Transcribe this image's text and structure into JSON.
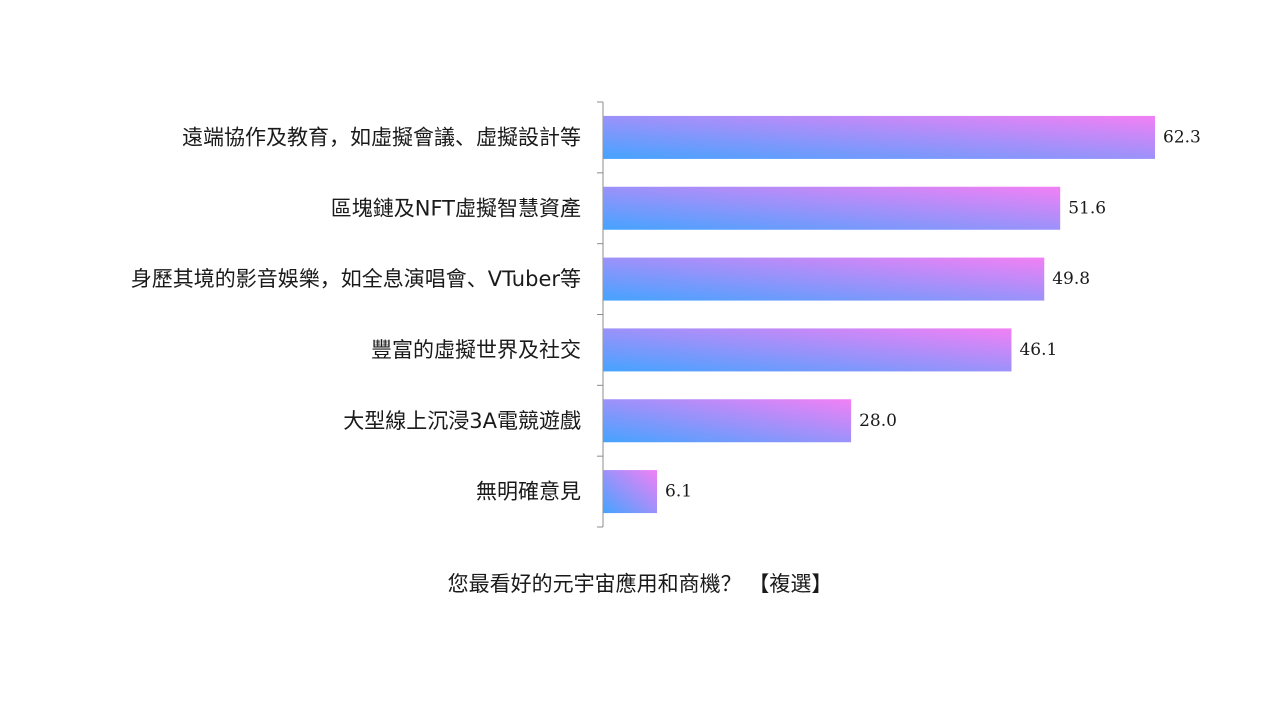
{
  "chart_data": {
    "type": "bar",
    "orientation": "horizontal",
    "title": "您最看好的元宇宙應用和商機？ 【複選】",
    "categories": [
      "遠端協作及教育，如虛擬會議、虛擬設計等",
      "區塊鏈及NFT虛擬智慧資產",
      "身歷其境的影音娛樂，如全息演唱會、VTuber等",
      "豐富的虛擬世界及社交",
      "大型線上沉浸3A電競遊戲",
      "無明確意見"
    ],
    "values": [
      62.3,
      51.6,
      49.8,
      46.1,
      28.0,
      6.1
    ],
    "value_labels": [
      "62.3",
      "51.6",
      "49.8",
      "46.1",
      "28.0",
      "6.1"
    ],
    "xlim": [
      0,
      70
    ],
    "grid": false,
    "legend": "none",
    "colors": {
      "gradient_start": "#45a3ff",
      "gradient_end": "#f280f5",
      "axis": "#8c8c8c",
      "text": "#1a1a1a"
    }
  }
}
